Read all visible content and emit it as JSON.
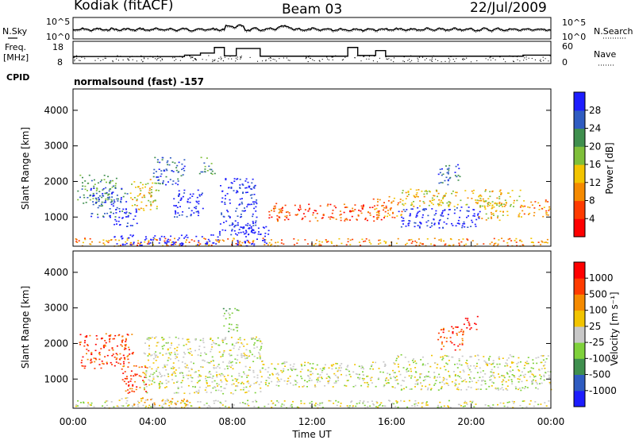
{
  "header": {
    "station": "Kodiak (fitACF)",
    "beam": "Beam 03",
    "date": "22/Jul/2009"
  },
  "aux_panels": {
    "nsky_label": "N.Sky",
    "nsearch_label": "N.Search",
    "freq_label_top": "Freq.",
    "freq_label_bottom": "[MHz]",
    "nave_label": "Nave",
    "cpid_label": "CPID",
    "cpid_text": "normalsound (fast) -157",
    "noise_ticks_left": [
      "10^5",
      "10^0"
    ],
    "noise_ticks_right": [
      "10^5",
      "10^0"
    ],
    "freq_ticks": [
      "18",
      "8"
    ],
    "nave_ticks": [
      "60",
      "0"
    ],
    "freq_steps": [
      [
        0,
        12
      ],
      [
        5.6,
        12.8
      ],
      [
        6.4,
        14
      ],
      [
        7.1,
        17.2
      ],
      [
        7.6,
        12.4
      ],
      [
        8.2,
        16.6
      ],
      [
        9.4,
        12.2
      ],
      [
        13.8,
        17.2
      ],
      [
        14.3,
        12.6
      ],
      [
        15.2,
        15.4
      ],
      [
        15.7,
        12.2
      ],
      [
        22.6,
        12.8
      ],
      [
        24,
        12.8
      ]
    ]
  },
  "chart_data": [
    {
      "type": "heatmap",
      "name": "power",
      "x": [
        "00:00",
        "04:00",
        "08:00",
        "12:00",
        "16:00",
        "20:00",
        "00:00"
      ],
      "ylabel": "Slant Range [km]",
      "yticks": [
        1000,
        2000,
        3000,
        4000
      ],
      "ylim": [
        180,
        4600
      ],
      "colorbar": {
        "label": "Power [dB]",
        "ticks": [
          "4",
          "8",
          "12",
          "16",
          "20",
          "24",
          "28"
        ],
        "colors": [
          "#1d1dff",
          "#2f5cc1",
          "#3f8f4e",
          "#7fbf3a",
          "#f2c400",
          "#f58a00",
          "#ff3b00",
          "#ff0000"
        ]
      },
      "regions": [
        {
          "t0": 0.1,
          "t1": 24,
          "r0": 200,
          "r1": 420,
          "level": 2
        },
        {
          "t0": 0.2,
          "t1": 2.2,
          "r0": 1400,
          "r1": 2200,
          "level": 5
        },
        {
          "t0": 0.8,
          "t1": 2.8,
          "r0": 1000,
          "r1": 1850,
          "level": 6
        },
        {
          "t0": 2.0,
          "t1": 3.2,
          "r0": 750,
          "r1": 1250,
          "level": 7
        },
        {
          "t0": 2.0,
          "t1": 7.3,
          "r0": 220,
          "r1": 520,
          "level": 8
        },
        {
          "t0": 2.8,
          "t1": 4.3,
          "r0": 1200,
          "r1": 2100,
          "level": 3
        },
        {
          "t0": 4.0,
          "t1": 5.6,
          "r0": 1900,
          "r1": 2700,
          "level": 6
        },
        {
          "t0": 5.0,
          "t1": 6.5,
          "r0": 1000,
          "r1": 1800,
          "level": 7
        },
        {
          "t0": 6.3,
          "t1": 7.1,
          "r0": 2200,
          "r1": 2700,
          "level": 5
        },
        {
          "t0": 7.3,
          "t1": 9.2,
          "r0": 500,
          "r1": 2100,
          "level": 7
        },
        {
          "t0": 8.2,
          "t1": 9.8,
          "r0": 200,
          "r1": 800,
          "level": 8
        },
        {
          "t0": 9.8,
          "t1": 15.6,
          "r0": 900,
          "r1": 1400,
          "level": 1
        },
        {
          "t0": 15.0,
          "t1": 16.5,
          "r0": 1000,
          "r1": 1600,
          "level": 2
        },
        {
          "t0": 16.3,
          "t1": 20.4,
          "r0": 700,
          "r1": 1300,
          "level": 7
        },
        {
          "t0": 16.5,
          "t1": 22.5,
          "r0": 1300,
          "r1": 1800,
          "level": 3
        },
        {
          "t0": 18.3,
          "t1": 19.4,
          "r0": 1900,
          "r1": 2500,
          "level": 6
        },
        {
          "t0": 20.3,
          "t1": 21.8,
          "r0": 900,
          "r1": 1600,
          "level": 3
        },
        {
          "t0": 22.3,
          "t1": 23.9,
          "r0": 1000,
          "r1": 1500,
          "level": 2
        }
      ]
    },
    {
      "type": "heatmap",
      "name": "velocity",
      "x": [
        "00:00",
        "04:00",
        "08:00",
        "12:00",
        "16:00",
        "20:00",
        "00:00"
      ],
      "xlabel": "Time UT",
      "ylabel": "Slant Range [km]",
      "yticks": [
        1000,
        2000,
        3000,
        4000
      ],
      "ylim": [
        180,
        4600
      ],
      "colorbar": {
        "label": "Velocity [m s⁻¹]",
        "ticks": [
          "1000",
          "500",
          "100",
          "25",
          "-25",
          "-100",
          "-500",
          "-1000"
        ],
        "colors": [
          "#1d1dff",
          "#2f5cc1",
          "#3f8f4e",
          "#7fd13b",
          "#c8c8c8",
          "#f2c400",
          "#f58a00",
          "#ff3b00",
          "#ff0000"
        ]
      },
      "regions": [
        {
          "t0": 0.1,
          "t1": 24,
          "r0": 200,
          "r1": 420,
          "level": 4
        },
        {
          "t0": 0.3,
          "t1": 3.0,
          "r0": 1300,
          "r1": 2300,
          "level": 7
        },
        {
          "t0": 2.4,
          "t1": 3.7,
          "r0": 600,
          "r1": 1400,
          "level": 7
        },
        {
          "t0": 2.4,
          "t1": 5.8,
          "r0": 220,
          "r1": 500,
          "level": 5
        },
        {
          "t0": 3.5,
          "t1": 9.5,
          "r0": 600,
          "r1": 2200,
          "level": 4
        },
        {
          "t0": 7.5,
          "t1": 8.3,
          "r0": 2300,
          "r1": 3000,
          "level": 3
        },
        {
          "t0": 9.5,
          "t1": 16.0,
          "r0": 800,
          "r1": 1500,
          "level": 4
        },
        {
          "t0": 16.0,
          "t1": 24,
          "r0": 700,
          "r1": 1700,
          "level": 4
        },
        {
          "t0": 18.3,
          "t1": 19.6,
          "r0": 1800,
          "r1": 2500,
          "level": 7
        },
        {
          "t0": 19.6,
          "t1": 20.3,
          "r0": 2400,
          "r1": 2800,
          "level": 8
        }
      ]
    }
  ]
}
